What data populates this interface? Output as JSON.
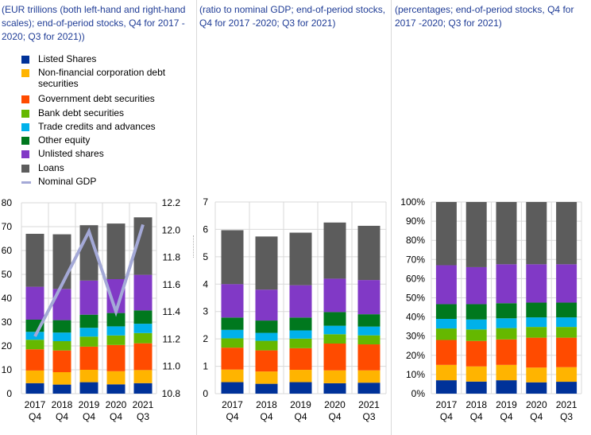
{
  "panels": [
    {
      "title": "(EUR trillions (both left-hand and right-hand scales); end-of-period stocks, Q4 for 2017 - 2020; Q3 for 2021))"
    },
    {
      "title": "(ratio to nominal GDP; end-of-period stocks, Q4 for 2017 -2020; Q3 for 2021)"
    },
    {
      "title": "(percentages; end-of-period stocks, Q4 for 2017 -2020; Q3 for 2021)"
    }
  ],
  "legend": [
    {
      "label": "Listed Shares",
      "color": "#003299"
    },
    {
      "label": "Non-financial corporation debt securities",
      "color": "#ffb400"
    },
    {
      "label": "Government debt securities",
      "color": "#ff4b00"
    },
    {
      "label": "Bank debt securities",
      "color": "#65b800"
    },
    {
      "label": "Trade credits and advances",
      "color": "#00b1ea"
    },
    {
      "label": "Other equity",
      "color": "#00781e"
    },
    {
      "label": "Unlisted shares",
      "color": "#8139c6"
    },
    {
      "label": "Loans",
      "color": "#5c5c5c"
    },
    {
      "label": "Nominal GDP",
      "color": "#a4a9d7",
      "type": "line"
    }
  ],
  "chart_data": [
    {
      "type": "bar",
      "stacked": true,
      "title": "(EUR trillions (both left-hand and right-hand scales); end-of-period stocks, Q4 for 2017 - 2020; Q3 for 2021))",
      "categories": [
        [
          "2017",
          "Q4"
        ],
        [
          "2018",
          "Q4"
        ],
        [
          "2019",
          "Q4"
        ],
        [
          "2020",
          "Q4"
        ],
        [
          "2021",
          "Q3"
        ]
      ],
      "ylim": [
        0,
        80
      ],
      "yticks": [
        "0",
        "10",
        "20",
        "30",
        "40",
        "50",
        "60",
        "70",
        "80"
      ],
      "y2lim": [
        10.8,
        12.2
      ],
      "y2ticks": [
        "10.8",
        "11.0",
        "11.2",
        "11.4",
        "11.6",
        "11.8",
        "12.0",
        "12.2"
      ],
      "grid": true,
      "series": [
        {
          "name": "Listed Shares",
          "values": [
            4.4,
            3.8,
            4.8,
            3.9,
            4.4
          ]
        },
        {
          "name": "Non-financial corporation debt securities",
          "values": [
            5.3,
            5.2,
            5.2,
            5.5,
            5.5
          ]
        },
        {
          "name": "Government debt securities",
          "values": [
            8.9,
            9.1,
            9.7,
            11.0,
            11.2
          ]
        },
        {
          "name": "Bank debt securities",
          "values": [
            4.0,
            3.9,
            4.2,
            4.0,
            4.3
          ]
        },
        {
          "name": "Trade credits and advances",
          "values": [
            3.3,
            3.6,
            3.7,
            3.8,
            3.9
          ]
        },
        {
          "name": "Other equity",
          "values": [
            5.1,
            5.2,
            5.5,
            5.6,
            5.6
          ]
        },
        {
          "name": "Unlisted shares",
          "values": [
            13.8,
            13.1,
            14.3,
            14.2,
            14.9
          ]
        },
        {
          "name": "Loans",
          "values": [
            22.2,
            22.9,
            23.2,
            23.3,
            24.1
          ]
        }
      ],
      "line": {
        "name": "Nominal GDP",
        "axis": "right",
        "values": [
          11.22,
          11.6,
          11.99,
          11.4,
          12.04
        ]
      }
    },
    {
      "type": "bar",
      "stacked": true,
      "title": "(ratio to nominal GDP; end-of-period stocks, Q4 for 2017 -2020; Q3 for 2021)",
      "categories": [
        [
          "2017",
          "Q4"
        ],
        [
          "2018",
          "Q4"
        ],
        [
          "2019",
          "Q4"
        ],
        [
          "2020",
          "Q4"
        ],
        [
          "2021",
          "Q3"
        ]
      ],
      "ylim": [
        0,
        7
      ],
      "yticks": [
        "0",
        "1",
        "2",
        "3",
        "4",
        "5",
        "6",
        "7"
      ],
      "grid": true,
      "series": [
        {
          "name": "Listed Shares",
          "values": [
            0.42,
            0.36,
            0.42,
            0.38,
            0.4
          ]
        },
        {
          "name": "Non-financial corporation debt securities",
          "values": [
            0.46,
            0.45,
            0.45,
            0.47,
            0.45
          ]
        },
        {
          "name": "Government debt securities",
          "values": [
            0.8,
            0.77,
            0.79,
            0.98,
            0.95
          ]
        },
        {
          "name": "Bank debt securities",
          "values": [
            0.34,
            0.35,
            0.35,
            0.34,
            0.33
          ]
        },
        {
          "name": "Trade credits and advances",
          "values": [
            0.31,
            0.29,
            0.3,
            0.31,
            0.32
          ]
        },
        {
          "name": "Other equity",
          "values": [
            0.45,
            0.45,
            0.47,
            0.5,
            0.45
          ]
        },
        {
          "name": "Unlisted shares",
          "values": [
            1.22,
            1.13,
            1.18,
            1.22,
            1.25
          ]
        },
        {
          "name": "Loans",
          "values": [
            1.97,
            1.94,
            1.92,
            2.05,
            1.98
          ]
        }
      ]
    },
    {
      "type": "bar",
      "stacked": true,
      "title": "(percentages; end-of-period stocks, Q4 for 2017 -2020; Q3 for 2021)",
      "categories": [
        [
          "2017",
          "Q4"
        ],
        [
          "2018",
          "Q4"
        ],
        [
          "2019",
          "Q4"
        ],
        [
          "2020",
          "Q4"
        ],
        [
          "2021",
          "Q3"
        ]
      ],
      "ylim": [
        0,
        100
      ],
      "yticks": [
        "0%",
        "10%",
        "20%",
        "30%",
        "40%",
        "50%",
        "60%",
        "70%",
        "80%",
        "90%",
        "100%"
      ],
      "grid": true,
      "series": [
        {
          "name": "Listed Shares",
          "values": [
            7.0,
            6.3,
            7.0,
            5.9,
            6.2
          ]
        },
        {
          "name": "Non-financial corporation debt securities",
          "values": [
            8.0,
            7.9,
            8.0,
            7.7,
            7.6
          ]
        },
        {
          "name": "Government debt securities",
          "values": [
            13.0,
            13.3,
            13.3,
            15.6,
            15.4
          ]
        },
        {
          "name": "Bank debt securities",
          "values": [
            6.0,
            6.0,
            5.9,
            5.6,
            5.6
          ]
        },
        {
          "name": "Trade credits and advances",
          "values": [
            5.0,
            5.2,
            5.1,
            5.0,
            5.0
          ]
        },
        {
          "name": "Other equity",
          "values": [
            7.7,
            8.0,
            7.9,
            7.7,
            7.7
          ]
        },
        {
          "name": "Unlisted shares",
          "values": [
            20.3,
            19.3,
            20.3,
            20.0,
            20.0
          ]
        },
        {
          "name": "Loans",
          "values": [
            33.0,
            34.0,
            32.5,
            32.5,
            32.5
          ]
        }
      ]
    }
  ]
}
